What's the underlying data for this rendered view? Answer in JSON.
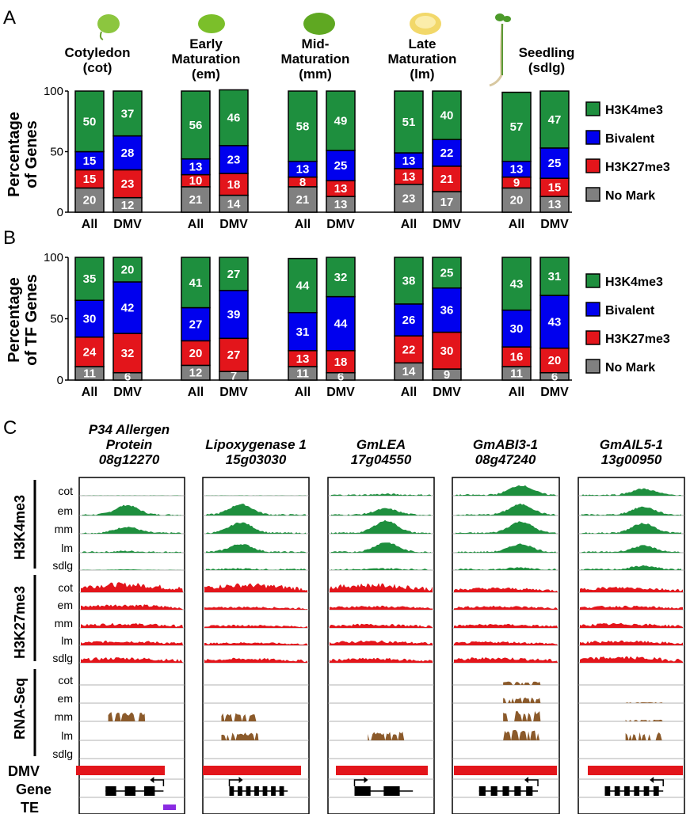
{
  "panels": {
    "a": "A",
    "b": "B",
    "c": "C"
  },
  "stages": [
    {
      "line1": "Cotyledon",
      "line2": "(cot)",
      "seed_color": "#8cc63f"
    },
    {
      "line1": "Early",
      "line2": "Maturation",
      "line3": "(em)",
      "seed_color": "#7bbf2a"
    },
    {
      "line1": "Mid-",
      "line2": "Maturation",
      "line3": "(mm)",
      "seed_color": "#5fa822"
    },
    {
      "line1": "Late",
      "line2": "Maturation",
      "line3": "(lm)",
      "seed_color": "#f2d86a"
    },
    {
      "line1": "Seedling",
      "line2": "(sdlg)",
      "seed_color": "#4c9a2a"
    }
  ],
  "legend": [
    {
      "label": "H3K4me3",
      "color": "#1e8f3e"
    },
    {
      "label": "Bivalent",
      "color": "#0000ee"
    },
    {
      "label": "H3K27me3",
      "color": "#e3151b"
    },
    {
      "label": "No Mark",
      "color": "#808080"
    }
  ],
  "chart_data": [
    {
      "type": "bar",
      "stacked": true,
      "ylabel_line1": "Percentage",
      "ylabel_line2": "of Genes",
      "ylim": [
        0,
        100
      ],
      "yticks": [
        "0",
        "50",
        "100"
      ],
      "categories": [
        "All",
        "DMV",
        "All",
        "DMV",
        "All",
        "DMV",
        "All",
        "DMV",
        "All",
        "DMV"
      ],
      "stage_groups": [
        "cot",
        "cot",
        "em",
        "em",
        "mm",
        "mm",
        "lm",
        "lm",
        "sdlg",
        "sdlg"
      ],
      "series": [
        {
          "name": "No Mark",
          "values": [
            20,
            12,
            21,
            14,
            21,
            13,
            23,
            17,
            20,
            13
          ]
        },
        {
          "name": "H3K27me3",
          "values": [
            15,
            23,
            10,
            18,
            8,
            13,
            13,
            21,
            9,
            15
          ]
        },
        {
          "name": "Bivalent",
          "values": [
            15,
            28,
            13,
            23,
            13,
            25,
            13,
            22,
            13,
            25
          ]
        },
        {
          "name": "H3K4me3",
          "values": [
            50,
            37,
            56,
            46,
            58,
            49,
            51,
            40,
            57,
            47
          ]
        }
      ]
    },
    {
      "type": "bar",
      "stacked": true,
      "ylabel_line1": "Percentage",
      "ylabel_line2": "of TF Genes",
      "ylim": [
        0,
        100
      ],
      "yticks": [
        "0",
        "50",
        "100"
      ],
      "categories": [
        "All",
        "DMV",
        "All",
        "DMV",
        "All",
        "DMV",
        "All",
        "DMV",
        "All",
        "DMV"
      ],
      "stage_groups": [
        "cot",
        "cot",
        "em",
        "em",
        "mm",
        "mm",
        "lm",
        "lm",
        "sdlg",
        "sdlg"
      ],
      "series": [
        {
          "name": "No Mark",
          "values": [
            11,
            6,
            12,
            7,
            11,
            6,
            14,
            9,
            11,
            6
          ]
        },
        {
          "name": "H3K27me3",
          "values": [
            24,
            32,
            20,
            27,
            13,
            18,
            22,
            30,
            16,
            20
          ]
        },
        {
          "name": "Bivalent",
          "values": [
            30,
            42,
            27,
            39,
            31,
            44,
            26,
            36,
            30,
            43
          ]
        },
        {
          "name": "H3K4me3",
          "values": [
            35,
            20,
            41,
            27,
            44,
            32,
            38,
            25,
            43,
            31
          ]
        }
      ]
    }
  ],
  "tracks": {
    "genes": [
      {
        "line1": "P34 Allergen",
        "line2": "Protein",
        "line3": "08g12270",
        "k4": [
          0.0,
          0.55,
          0.35,
          0.05,
          0.03
        ],
        "k27": [
          0.6,
          0.35,
          0.3,
          0.3,
          0.35
        ],
        "rna": [
          0,
          0,
          0.55,
          0,
          0
        ],
        "te": true
      },
      {
        "line1": "Lipoxygenase 1",
        "line2": "15g03030",
        "k4": [
          0.0,
          0.6,
          0.6,
          0.45,
          0.05
        ],
        "k27": [
          0.55,
          0.2,
          0.2,
          0.2,
          0.3
        ],
        "rna": [
          0,
          0,
          0.5,
          0.45,
          0
        ],
        "te": false
      },
      {
        "line1": "GmLEA",
        "line2": "17g04550",
        "k4": [
          0.05,
          0.35,
          0.7,
          0.55,
          0.05
        ],
        "k27": [
          0.55,
          0.25,
          0.25,
          0.3,
          0.3
        ],
        "rna": [
          0,
          0,
          0,
          0.5,
          0
        ],
        "te": false
      },
      {
        "line1": "GmABI3-1",
        "line2": "08g47240",
        "k4": [
          0.55,
          0.6,
          0.65,
          0.45,
          0.1
        ],
        "k27": [
          0.3,
          0.25,
          0.25,
          0.25,
          0.35
        ],
        "rna": [
          0.2,
          0.35,
          0.6,
          0.6,
          0
        ],
        "te": false
      },
      {
        "line1": "GmAIL5-1",
        "line2": "13g00950",
        "k4": [
          0.35,
          0.45,
          0.55,
          0.35,
          0.2
        ],
        "k27": [
          0.35,
          0.25,
          0.3,
          0.3,
          0.4
        ],
        "rna": [
          0,
          0.05,
          0.1,
          0.5,
          0
        ],
        "te": false
      }
    ],
    "stage_labels": [
      "cot",
      "em",
      "mm",
      "lm",
      "sdlg"
    ],
    "group_labels": [
      "H3K4me3",
      "H3K27me3",
      "RNA-Seq"
    ],
    "row_labels": [
      "DMV",
      "Gene",
      "TE"
    ],
    "colors": {
      "k4": "#1e8f3e",
      "k27": "#e3151b",
      "rna": "#8b5a2b",
      "te": "#8a2be2",
      "dmv": "#e3151b"
    }
  }
}
